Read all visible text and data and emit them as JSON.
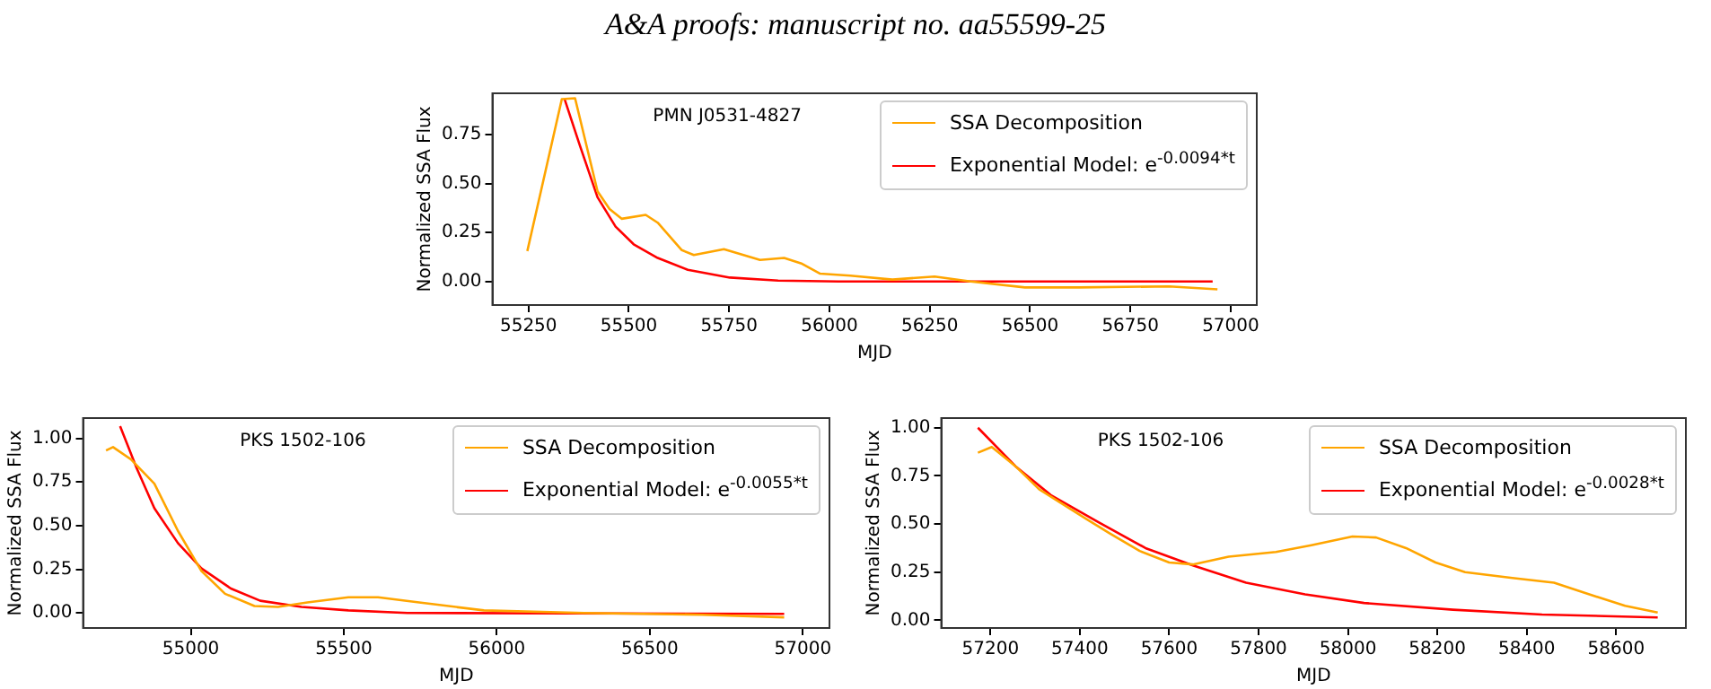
{
  "chart_data": [
    {
      "type": "line",
      "title": "A&A proofs: manuscript no. aa55599-25",
      "xlabel": "MJD",
      "ylabel": "Normalized SSA Flux",
      "annotations": [
        "PMN J0531-4827"
      ],
      "legend": "top right",
      "marker": "none",
      "xlim": [
        55160,
        57065
      ],
      "ylim": [
        -0.12,
        0.96
      ],
      "xticks": [
        55250,
        55500,
        55750,
        56000,
        56250,
        56500,
        56750,
        57000
      ],
      "yticks": [
        {
          "value": 0,
          "label": "0.00"
        },
        {
          "value": 0.25,
          "label": "0.25"
        },
        {
          "value": 0.5,
          "label": "0.50"
        },
        {
          "value": 0.75,
          "label": "0.75"
        }
      ],
      "series": [
        {
          "name": "SSA Decomposition",
          "color": "#ffa500",
          "x": [
            55247,
            55333,
            55366,
            55422,
            55452,
            55482,
            55542,
            55572,
            55632,
            55662,
            55737,
            55827,
            55887,
            55932,
            55977,
            56052,
            56157,
            56262,
            56352,
            56487,
            56622,
            56847,
            56967
          ],
          "values": [
            0.155,
            0.93,
            0.935,
            0.46,
            0.37,
            0.32,
            0.34,
            0.3,
            0.16,
            0.135,
            0.165,
            0.11,
            0.12,
            0.09,
            0.04,
            0.03,
            0.01,
            0.025,
            0,
            -0.03,
            -0.03,
            -0.025,
            -0.04
          ]
        },
        {
          "name": "Exponential Model: e$^{-0.0094*t}$",
          "color": "#ff0000",
          "x": [
            55340,
            55377,
            55422,
            55467,
            55512,
            55572,
            55647,
            55752,
            55872,
            56022,
            56955
          ],
          "values": [
            0.93,
            0.7,
            0.43,
            0.28,
            0.19,
            0.12,
            0.06,
            0.02,
            0.005,
            0,
            0
          ]
        }
      ]
    },
    {
      "type": "line",
      "xlabel": "MJD",
      "ylabel": "Normalized SSA Flux",
      "annotations": [
        "PKS 1502-106"
      ],
      "legend": "top right",
      "marker": "none",
      "xlim": [
        54648,
        57087
      ],
      "ylim": [
        -0.086,
        1.116
      ],
      "xticks": [
        55000,
        55500,
        56000,
        56500,
        57000
      ],
      "yticks": [
        {
          "value": 0,
          "label": "0.00"
        },
        {
          "value": 0.25,
          "label": "0.25"
        },
        {
          "value": 0.5,
          "label": "0.50"
        },
        {
          "value": 0.75,
          "label": "0.75"
        },
        {
          "value": 1,
          "label": "1.00"
        }
      ],
      "series": [
        {
          "name": "SSA Decomposition",
          "color": "#ffa500",
          "x": [
            54723,
            54746,
            54804,
            54881,
            54958,
            55035,
            55112,
            55208,
            55285,
            55381,
            55515,
            55612,
            55746,
            55958,
            56285,
            56670,
            56939
          ],
          "values": [
            0.93,
            0.95,
            0.88,
            0.74,
            0.47,
            0.24,
            0.11,
            0.04,
            0.035,
            0.06,
            0.09,
            0.09,
            0.06,
            0.015,
            0,
            -0.01,
            -0.025
          ]
        },
        {
          "name": "Exponential Model: e$^{-0.0055*t}$",
          "color": "#ff0000",
          "x": [
            54769,
            54823,
            54881,
            54958,
            55035,
            55131,
            55227,
            55362,
            55515,
            55708,
            56939
          ],
          "values": [
            1.07,
            0.83,
            0.6,
            0.4,
            0.255,
            0.14,
            0.07,
            0.035,
            0.015,
            0,
            -0.005
          ]
        }
      ]
    },
    {
      "type": "line",
      "xlabel": "MJD",
      "ylabel": "Normalized SSA Flux",
      "annotations": [
        "PKS 1502-106"
      ],
      "legend": "top right",
      "marker": "none",
      "xlim": [
        57090,
        58756
      ],
      "ylim": [
        -0.04,
        1.05
      ],
      "xticks": [
        57200,
        57400,
        57600,
        57800,
        58000,
        58200,
        58400,
        58600
      ],
      "yticks": [
        {
          "value": 0,
          "label": "0.00"
        },
        {
          "value": 0.25,
          "label": "0.25"
        },
        {
          "value": 0.5,
          "label": "0.50"
        },
        {
          "value": 0.75,
          "label": "0.75"
        },
        {
          "value": 1,
          "label": "1.00"
        }
      ],
      "series": [
        {
          "name": "SSA Decomposition",
          "color": "#ffa500",
          "x": [
            57172,
            57203,
            57256,
            57309,
            57415,
            57468,
            57534,
            57600,
            57653,
            57733,
            57839,
            57918,
            58010,
            58063,
            58130,
            58196,
            58262,
            58368,
            58461,
            58540,
            58620,
            58693
          ],
          "values": [
            0.87,
            0.9,
            0.8,
            0.68,
            0.525,
            0.45,
            0.36,
            0.3,
            0.29,
            0.33,
            0.355,
            0.39,
            0.435,
            0.43,
            0.375,
            0.3,
            0.25,
            0.22,
            0.195,
            0.135,
            0.075,
            0.04
          ]
        },
        {
          "name": "Exponential Model: e$^{-0.0028*t}$",
          "color": "#ff0000",
          "x": [
            57172,
            57256,
            57335,
            57441,
            57547,
            57653,
            57772,
            57904,
            58036,
            58235,
            58434,
            58693
          ],
          "values": [
            1,
            0.8,
            0.65,
            0.51,
            0.375,
            0.285,
            0.195,
            0.135,
            0.09,
            0.055,
            0.03,
            0.015
          ]
        }
      ]
    }
  ]
}
